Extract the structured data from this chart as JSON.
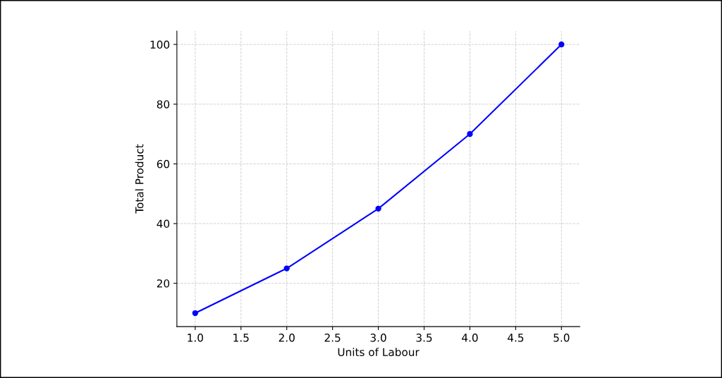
{
  "chart_data": {
    "type": "line",
    "xlabel": "Units of Labour",
    "ylabel": "Total Product",
    "x": [
      1,
      2,
      3,
      4,
      5
    ],
    "series": [
      {
        "color": "#0000ff",
        "values": [
          10,
          25,
          45,
          70,
          100
        ]
      }
    ],
    "xlim": [
      0.8,
      5.2
    ],
    "xticks": [
      {
        "value": 1,
        "label": "1.0"
      },
      {
        "value": 1.5,
        "label": "1.5"
      },
      {
        "value": 2,
        "label": "2.0"
      },
      {
        "value": 2.5,
        "label": "2.5"
      },
      {
        "value": 3,
        "label": "3.0"
      },
      {
        "value": 3.5,
        "label": "3.5"
      },
      {
        "value": 4,
        "label": "4.0"
      },
      {
        "value": 4.5,
        "label": "4.5"
      },
      {
        "value": 5,
        "label": "5.0"
      }
    ],
    "ylim": [
      5.5,
      104.5
    ],
    "yticks": [
      20,
      40,
      60,
      80,
      100
    ],
    "grid": true,
    "marker": "circle",
    "line_style": "solid"
  }
}
